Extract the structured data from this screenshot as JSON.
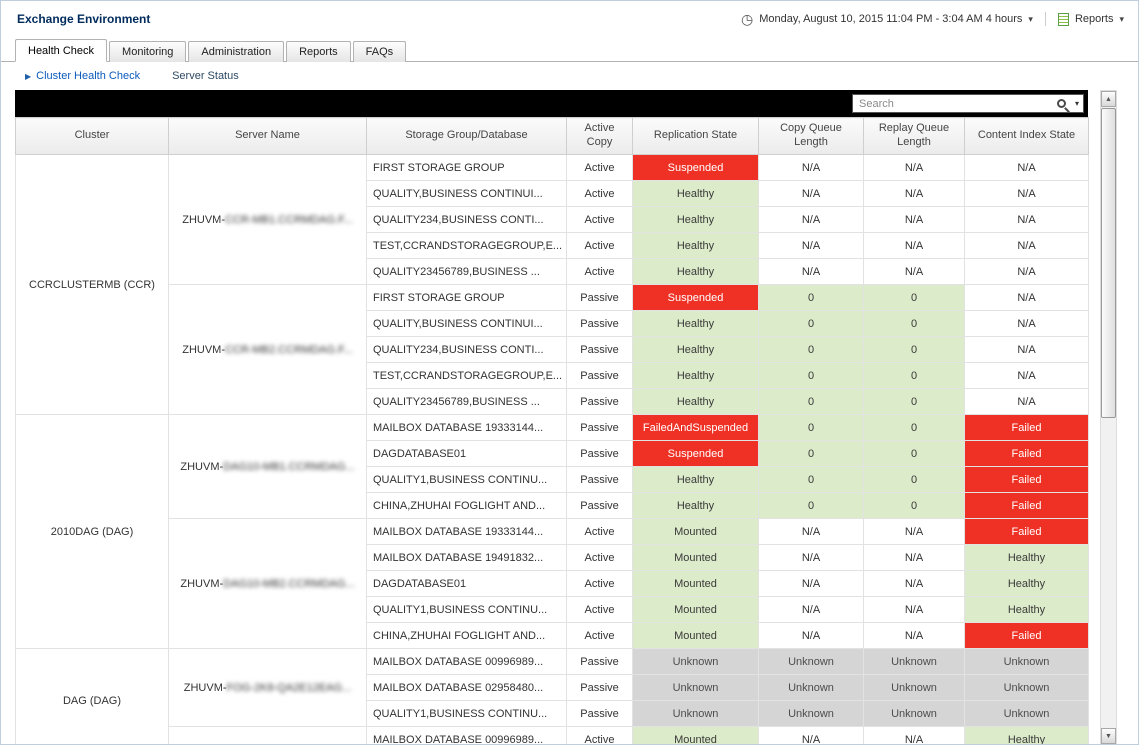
{
  "header": {
    "title": "Exchange Environment",
    "time_range": "Monday, August 10, 2015 11:04 PM - 3:04 AM 4 hours",
    "reports_label": "Reports"
  },
  "tabs": [
    {
      "label": "Health Check",
      "active": true
    },
    {
      "label": "Monitoring",
      "active": false
    },
    {
      "label": "Administration",
      "active": false
    },
    {
      "label": "Reports",
      "active": false
    },
    {
      "label": "FAQs",
      "active": false
    }
  ],
  "subnav": {
    "cluster_health_check": "Cluster Health Check",
    "server_status": "Server Status"
  },
  "search": {
    "placeholder": "Search"
  },
  "status_colors": {
    "critical_bg": "#ee3124",
    "healthy_bg": "#dcebc9",
    "unknown_bg": "#d5d5d5"
  },
  "table": {
    "columns": [
      "Cluster",
      "Server Name",
      "Storage Group/Database",
      "Active Copy",
      "Replication State",
      "Copy Queue Length",
      "Replay Queue Length",
      "Content Index State"
    ],
    "clusters": [
      {
        "name": "CCRCLUSTERMB (CCR)",
        "servers": [
          {
            "name": "ZHUVM-",
            "name_redacted": "CCR-MB1.CCRMDAG.F...",
            "rows": [
              {
                "db": "FIRST STORAGE GROUP",
                "copy": "Active",
                "rep": [
                  "Suspended",
                  "red"
                ],
                "cq": [
                  "N/A",
                  "none"
                ],
                "rq": [
                  "N/A",
                  "none"
                ],
                "ci": [
                  "N/A",
                  "none"
                ]
              },
              {
                "db": "QUALITY,BUSINESS CONTINUI...",
                "copy": "Active",
                "rep": [
                  "Healthy",
                  "green"
                ],
                "cq": [
                  "N/A",
                  "none"
                ],
                "rq": [
                  "N/A",
                  "none"
                ],
                "ci": [
                  "N/A",
                  "none"
                ]
              },
              {
                "db": "QUALITY234,BUSINESS CONTI...",
                "copy": "Active",
                "rep": [
                  "Healthy",
                  "green"
                ],
                "cq": [
                  "N/A",
                  "none"
                ],
                "rq": [
                  "N/A",
                  "none"
                ],
                "ci": [
                  "N/A",
                  "none"
                ]
              },
              {
                "db": "TEST,CCRANDSTORAGEGROUP,E...",
                "copy": "Active",
                "rep": [
                  "Healthy",
                  "green"
                ],
                "cq": [
                  "N/A",
                  "none"
                ],
                "rq": [
                  "N/A",
                  "none"
                ],
                "ci": [
                  "N/A",
                  "none"
                ]
              },
              {
                "db": "QUALITY23456789,BUSINESS ...",
                "copy": "Active",
                "rep": [
                  "Healthy",
                  "green"
                ],
                "cq": [
                  "N/A",
                  "none"
                ],
                "rq": [
                  "N/A",
                  "none"
                ],
                "ci": [
                  "N/A",
                  "none"
                ]
              }
            ]
          },
          {
            "name": "ZHUVM-",
            "name_redacted": "CCR-MB2.CCRMDAG.F...",
            "rows": [
              {
                "db": "FIRST STORAGE GROUP",
                "copy": "Passive",
                "rep": [
                  "Suspended",
                  "red"
                ],
                "cq": [
                  "0",
                  "green"
                ],
                "rq": [
                  "0",
                  "green"
                ],
                "ci": [
                  "N/A",
                  "none"
                ]
              },
              {
                "db": "QUALITY,BUSINESS CONTINUI...",
                "copy": "Passive",
                "rep": [
                  "Healthy",
                  "green"
                ],
                "cq": [
                  "0",
                  "green"
                ],
                "rq": [
                  "0",
                  "green"
                ],
                "ci": [
                  "N/A",
                  "none"
                ]
              },
              {
                "db": "QUALITY234,BUSINESS CONTI...",
                "copy": "Passive",
                "rep": [
                  "Healthy",
                  "green"
                ],
                "cq": [
                  "0",
                  "green"
                ],
                "rq": [
                  "0",
                  "green"
                ],
                "ci": [
                  "N/A",
                  "none"
                ]
              },
              {
                "db": "TEST,CCRANDSTORAGEGROUP,E...",
                "copy": "Passive",
                "rep": [
                  "Healthy",
                  "green"
                ],
                "cq": [
                  "0",
                  "green"
                ],
                "rq": [
                  "0",
                  "green"
                ],
                "ci": [
                  "N/A",
                  "none"
                ]
              },
              {
                "db": "QUALITY23456789,BUSINESS ...",
                "copy": "Passive",
                "rep": [
                  "Healthy",
                  "green"
                ],
                "cq": [
                  "0",
                  "green"
                ],
                "rq": [
                  "0",
                  "green"
                ],
                "ci": [
                  "N/A",
                  "none"
                ]
              }
            ]
          }
        ]
      },
      {
        "name": "2010DAG (DAG)",
        "servers": [
          {
            "name": "ZHUVM-",
            "name_redacted": "DAG10-MB1.CCRMDAG...",
            "rows": [
              {
                "db": "MAILBOX DATABASE 19333144...",
                "copy": "Passive",
                "rep": [
                  "FailedAndSuspended",
                  "red"
                ],
                "cq": [
                  "0",
                  "green"
                ],
                "rq": [
                  "0",
                  "green"
                ],
                "ci": [
                  "Failed",
                  "red"
                ]
              },
              {
                "db": "DAGDATABASE01",
                "copy": "Passive",
                "rep": [
                  "Suspended",
                  "red"
                ],
                "cq": [
                  "0",
                  "green"
                ],
                "rq": [
                  "0",
                  "green"
                ],
                "ci": [
                  "Failed",
                  "red"
                ]
              },
              {
                "db": "QUALITY1,BUSINESS CONTINU...",
                "copy": "Passive",
                "rep": [
                  "Healthy",
                  "green"
                ],
                "cq": [
                  "0",
                  "green"
                ],
                "rq": [
                  "0",
                  "green"
                ],
                "ci": [
                  "Failed",
                  "red"
                ]
              },
              {
                "db": "CHINA,ZHUHAI FOGLIGHT AND...",
                "copy": "Passive",
                "rep": [
                  "Healthy",
                  "green"
                ],
                "cq": [
                  "0",
                  "green"
                ],
                "rq": [
                  "0",
                  "green"
                ],
                "ci": [
                  "Failed",
                  "red"
                ]
              }
            ]
          },
          {
            "name": "ZHUVM-",
            "name_redacted": "DAG10-MB2.CCRMDAG...",
            "rows": [
              {
                "db": "MAILBOX DATABASE 19333144...",
                "copy": "Active",
                "rep": [
                  "Mounted",
                  "green"
                ],
                "cq": [
                  "N/A",
                  "none"
                ],
                "rq": [
                  "N/A",
                  "none"
                ],
                "ci": [
                  "Failed",
                  "red"
                ]
              },
              {
                "db": "MAILBOX DATABASE 19491832...",
                "copy": "Active",
                "rep": [
                  "Mounted",
                  "green"
                ],
                "cq": [
                  "N/A",
                  "none"
                ],
                "rq": [
                  "N/A",
                  "none"
                ],
                "ci": [
                  "Healthy",
                  "green"
                ]
              },
              {
                "db": "DAGDATABASE01",
                "copy": "Active",
                "rep": [
                  "Mounted",
                  "green"
                ],
                "cq": [
                  "N/A",
                  "none"
                ],
                "rq": [
                  "N/A",
                  "none"
                ],
                "ci": [
                  "Healthy",
                  "green"
                ]
              },
              {
                "db": "QUALITY1,BUSINESS CONTINU...",
                "copy": "Active",
                "rep": [
                  "Mounted",
                  "green"
                ],
                "cq": [
                  "N/A",
                  "none"
                ],
                "rq": [
                  "N/A",
                  "none"
                ],
                "ci": [
                  "Healthy",
                  "green"
                ]
              },
              {
                "db": "CHINA,ZHUHAI FOGLIGHT AND...",
                "copy": "Active",
                "rep": [
                  "Mounted",
                  "green"
                ],
                "cq": [
                  "N/A",
                  "none"
                ],
                "rq": [
                  "N/A",
                  "none"
                ],
                "ci": [
                  "Failed",
                  "red"
                ]
              }
            ]
          }
        ]
      },
      {
        "name": "DAG (DAG)",
        "servers": [
          {
            "name": "ZHUVM-",
            "name_redacted": "FOG-2K8-QA2E12EAG...",
            "rows": [
              {
                "db": "MAILBOX DATABASE 00996989...",
                "copy": "Passive",
                "rep": [
                  "Unknown",
                  "gray"
                ],
                "cq": [
                  "Unknown",
                  "gray"
                ],
                "rq": [
                  "Unknown",
                  "gray"
                ],
                "ci": [
                  "Unknown",
                  "gray"
                ]
              },
              {
                "db": "MAILBOX DATABASE 02958480...",
                "copy": "Passive",
                "rep": [
                  "Unknown",
                  "gray"
                ],
                "cq": [
                  "Unknown",
                  "gray"
                ],
                "rq": [
                  "Unknown",
                  "gray"
                ],
                "ci": [
                  "Unknown",
                  "gray"
                ]
              },
              {
                "db": "QUALITY1,BUSINESS CONTINU...",
                "copy": "Passive",
                "rep": [
                  "Unknown",
                  "gray"
                ],
                "cq": [
                  "Unknown",
                  "gray"
                ],
                "rq": [
                  "Unknown",
                  "gray"
                ],
                "ci": [
                  "Unknown",
                  "gray"
                ]
              }
            ]
          },
          {
            "name": "",
            "name_redacted": "",
            "rows": [
              {
                "db": "MAILBOX DATABASE 00996989...",
                "copy": "Active",
                "rep": [
                  "Mounted",
                  "green"
                ],
                "cq": [
                  "N/A",
                  "none"
                ],
                "rq": [
                  "N/A",
                  "none"
                ],
                "ci": [
                  "Healthy",
                  "green"
                ]
              }
            ]
          }
        ]
      }
    ]
  }
}
